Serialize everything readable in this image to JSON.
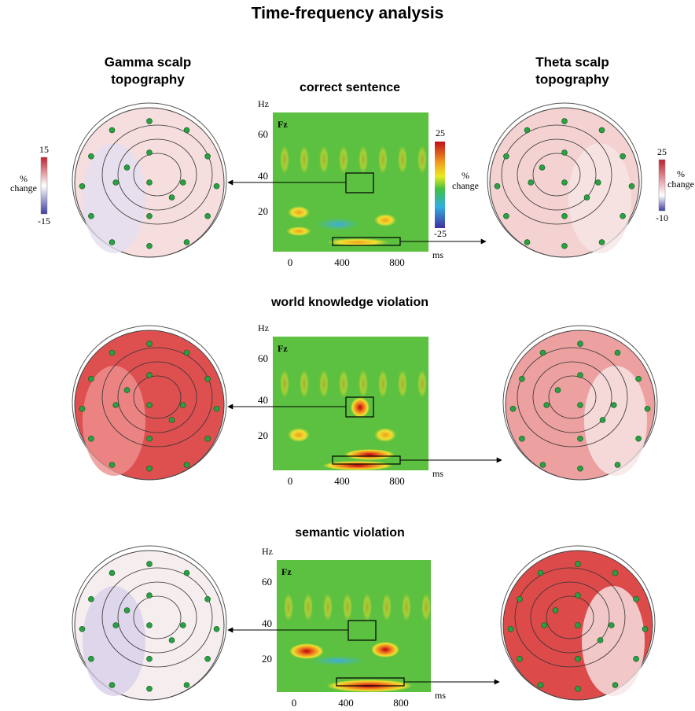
{
  "title": "Time-frequency analysis",
  "gamma_header": [
    "Gamma scalp",
    "topography"
  ],
  "theta_header": [
    "Theta scalp",
    "topography"
  ],
  "gamma_colorbar": {
    "max": "15",
    "min": "-15",
    "label": [
      "%",
      "change"
    ]
  },
  "spectrogram_colorbar": {
    "max": "25",
    "min": "-25",
    "label": [
      "%",
      "change"
    ]
  },
  "theta_colorbar": {
    "max": "25",
    "min": "-10",
    "label": [
      "%",
      "change"
    ]
  },
  "panels": [
    {
      "title": "correct sentence",
      "y_unit": "Hz",
      "x_unit": "ms",
      "channel": "Fz",
      "yticks": [
        "60",
        "40",
        "20"
      ],
      "xticks": [
        "0",
        "400",
        "800"
      ]
    },
    {
      "title": "world knowledge violation",
      "y_unit": "Hz",
      "x_unit": "ms",
      "channel": "Fz",
      "yticks": [
        "60",
        "40",
        "20"
      ],
      "xticks": [
        "0",
        "400",
        "800"
      ]
    },
    {
      "title": "semantic violation",
      "y_unit": "Hz",
      "x_unit": "ms",
      "channel": "Fz",
      "yticks": [
        "60",
        "40",
        "20"
      ],
      "xticks": [
        "0",
        "400",
        "800"
      ]
    }
  ]
}
